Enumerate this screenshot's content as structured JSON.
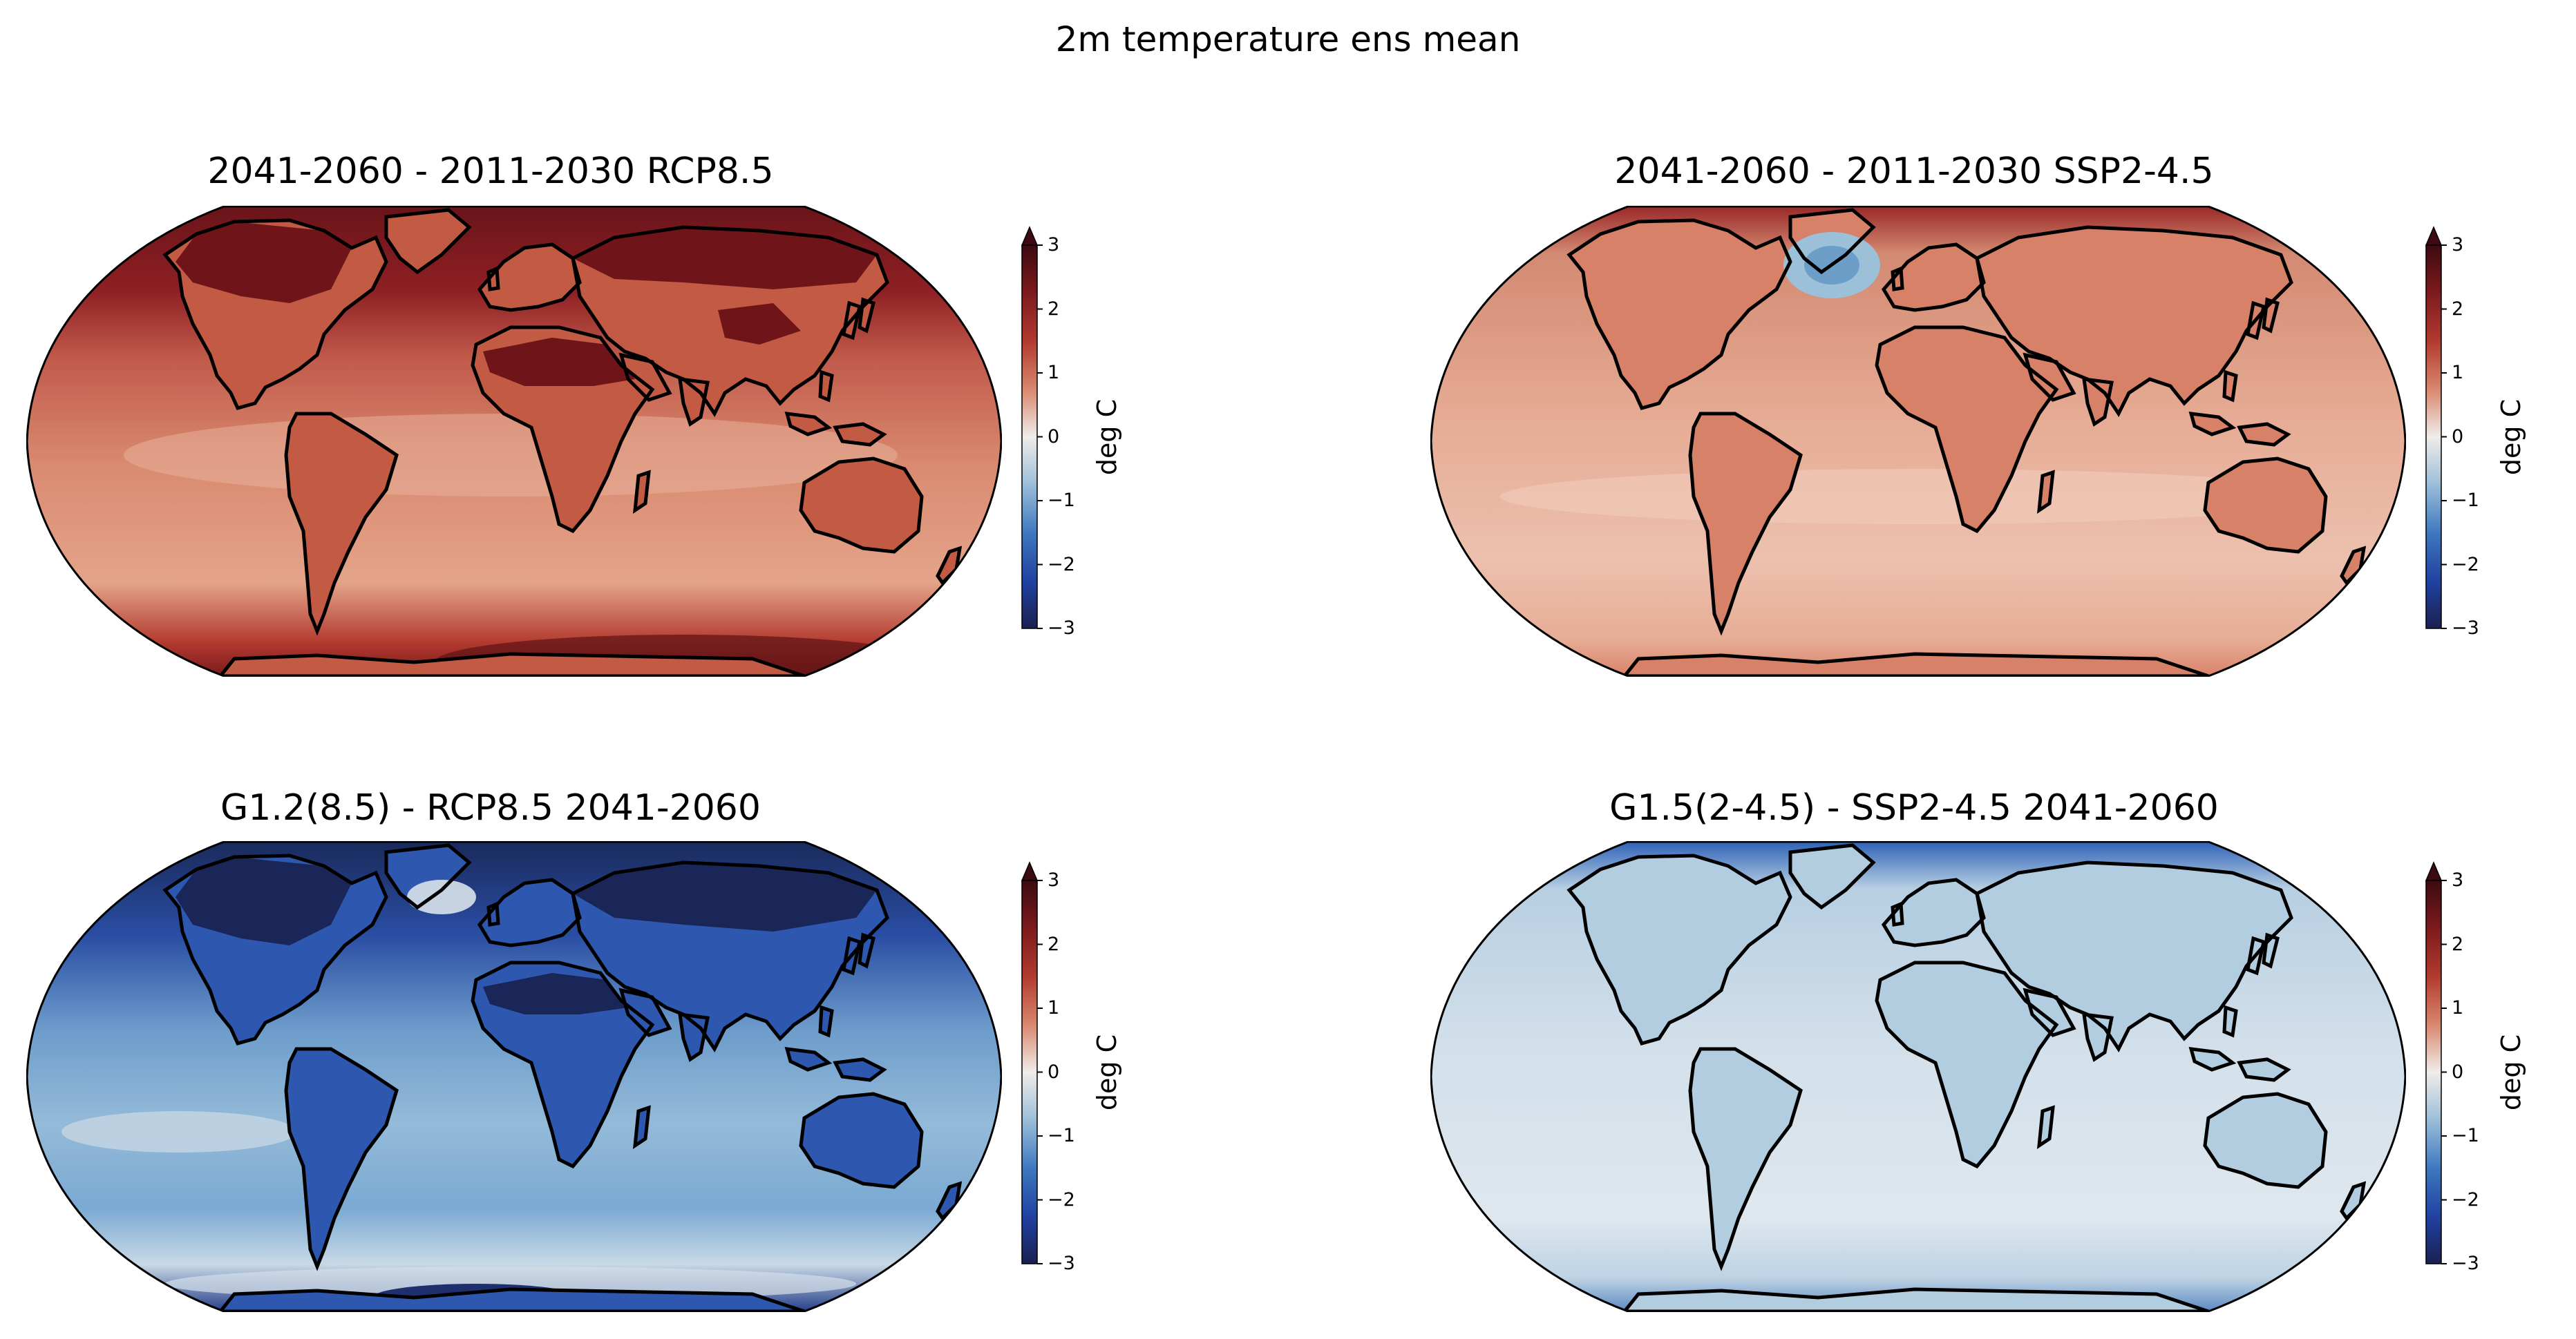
{
  "figure": {
    "title": "2m temperature ens mean"
  },
  "panels": [
    {
      "title": "2041-2060 - 2011-2030 RCP8.5",
      "scheme": "warm_strong"
    },
    {
      "title": "2041-2060 - 2011-2030 SSP2-4.5",
      "scheme": "warm_mild"
    },
    {
      "title": "G1.2(8.5) - RCP8.5 2041-2060",
      "scheme": "cool_strong"
    },
    {
      "title": "G1.5(2-4.5) - SSP2-4.5 2041-2060",
      "scheme": "cool_mild"
    }
  ],
  "colorbar": {
    "label": "deg C",
    "ticks": [
      "3",
      "2",
      "1",
      "0",
      "−1",
      "−2",
      "−3"
    ],
    "range": [
      -3,
      3
    ],
    "extend": "max",
    "colors": [
      "#f0f0f0",
      "#d8866a",
      "#9e2a22",
      "#5c1216",
      "#c4d8e6",
      "#6aa0c8",
      "#2a5aaa",
      "#1a2a5c"
    ]
  }
}
